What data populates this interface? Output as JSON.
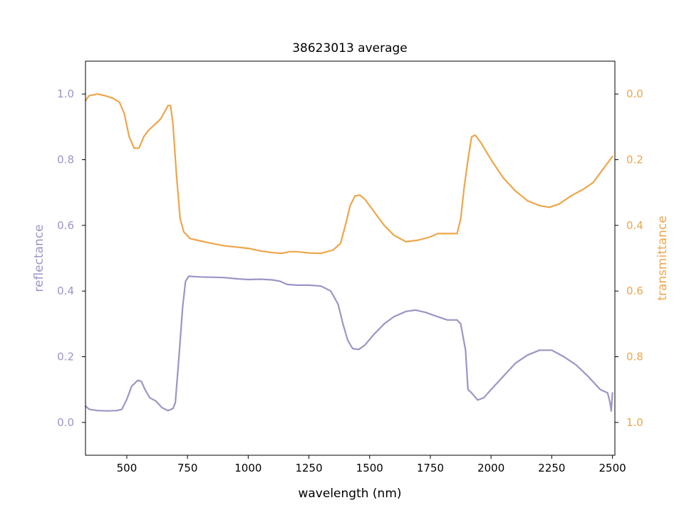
{
  "chart_data": {
    "type": "line",
    "title": "38623013 average",
    "xlabel": "wavelength (nm)",
    "ylabel_left": "reflectance",
    "ylabel_right": "transmittance",
    "xlim": [
      330,
      2510
    ],
    "ylim_left": [
      -0.1,
      1.1
    ],
    "ylim_right": [
      1.1,
      -0.1
    ],
    "right_axis_inverted": true,
    "grid": false,
    "x_ticks": [
      500,
      750,
      1000,
      1250,
      1500,
      1750,
      2000,
      2250,
      2500
    ],
    "x_tick_labels": [
      "500",
      "750",
      "1000",
      "1250",
      "1500",
      "1750",
      "2000",
      "2250",
      "2500"
    ],
    "left_ticks": [
      0.0,
      0.2,
      0.4,
      0.6,
      0.8,
      1.0
    ],
    "left_tick_labels": [
      "0.0",
      "0.2",
      "0.4",
      "0.6",
      "0.8",
      "1.0"
    ],
    "right_ticks": [
      0.0,
      0.2,
      0.4,
      0.6,
      0.8,
      1.0
    ],
    "right_tick_labels": [
      "0.0",
      "0.2",
      "0.4",
      "0.6",
      "0.8",
      "1.0"
    ],
    "colors": {
      "reflectance": "#9a96c6",
      "transmittance": "#eea64b",
      "axes": "#000000"
    },
    "series": [
      {
        "name": "reflectance",
        "axis": "left",
        "points": [
          [
            330,
            0.05
          ],
          [
            345,
            0.04
          ],
          [
            380,
            0.036
          ],
          [
            420,
            0.035
          ],
          [
            460,
            0.036
          ],
          [
            480,
            0.04
          ],
          [
            500,
            0.07
          ],
          [
            520,
            0.11
          ],
          [
            545,
            0.128
          ],
          [
            560,
            0.125
          ],
          [
            575,
            0.1
          ],
          [
            595,
            0.075
          ],
          [
            620,
            0.065
          ],
          [
            645,
            0.045
          ],
          [
            670,
            0.036
          ],
          [
            690,
            0.042
          ],
          [
            700,
            0.06
          ],
          [
            715,
            0.2
          ],
          [
            730,
            0.35
          ],
          [
            742,
            0.43
          ],
          [
            755,
            0.445
          ],
          [
            800,
            0.443
          ],
          [
            900,
            0.441
          ],
          [
            960,
            0.437
          ],
          [
            1000,
            0.435
          ],
          [
            1050,
            0.436
          ],
          [
            1100,
            0.434
          ],
          [
            1130,
            0.43
          ],
          [
            1160,
            0.42
          ],
          [
            1200,
            0.418
          ],
          [
            1250,
            0.418
          ],
          [
            1300,
            0.415
          ],
          [
            1340,
            0.4
          ],
          [
            1370,
            0.36
          ],
          [
            1390,
            0.3
          ],
          [
            1410,
            0.25
          ],
          [
            1430,
            0.225
          ],
          [
            1455,
            0.222
          ],
          [
            1480,
            0.235
          ],
          [
            1520,
            0.27
          ],
          [
            1560,
            0.3
          ],
          [
            1600,
            0.322
          ],
          [
            1650,
            0.338
          ],
          [
            1690,
            0.342
          ],
          [
            1730,
            0.335
          ],
          [
            1780,
            0.322
          ],
          [
            1820,
            0.312
          ],
          [
            1860,
            0.312
          ],
          [
            1875,
            0.3
          ],
          [
            1895,
            0.22
          ],
          [
            1905,
            0.1
          ],
          [
            1920,
            0.09
          ],
          [
            1945,
            0.068
          ],
          [
            1970,
            0.075
          ],
          [
            2000,
            0.1
          ],
          [
            2050,
            0.14
          ],
          [
            2100,
            0.18
          ],
          [
            2150,
            0.205
          ],
          [
            2200,
            0.22
          ],
          [
            2250,
            0.22
          ],
          [
            2300,
            0.2
          ],
          [
            2350,
            0.175
          ],
          [
            2400,
            0.14
          ],
          [
            2450,
            0.1
          ],
          [
            2480,
            0.09
          ],
          [
            2490,
            0.06
          ],
          [
            2495,
            0.035
          ],
          [
            2500,
            0.09
          ]
        ]
      },
      {
        "name": "transmittance",
        "axis": "right",
        "points": [
          [
            330,
            0.02
          ],
          [
            345,
            0.005
          ],
          [
            380,
            0.0
          ],
          [
            410,
            0.005
          ],
          [
            440,
            0.012
          ],
          [
            470,
            0.025
          ],
          [
            490,
            0.06
          ],
          [
            510,
            0.13
          ],
          [
            530,
            0.165
          ],
          [
            550,
            0.165
          ],
          [
            570,
            0.13
          ],
          [
            590,
            0.11
          ],
          [
            620,
            0.09
          ],
          [
            640,
            0.075
          ],
          [
            655,
            0.055
          ],
          [
            670,
            0.035
          ],
          [
            680,
            0.035
          ],
          [
            690,
            0.09
          ],
          [
            705,
            0.25
          ],
          [
            720,
            0.38
          ],
          [
            735,
            0.42
          ],
          [
            760,
            0.44
          ],
          [
            800,
            0.447
          ],
          [
            850,
            0.455
          ],
          [
            900,
            0.462
          ],
          [
            950,
            0.466
          ],
          [
            1000,
            0.47
          ],
          [
            1050,
            0.478
          ],
          [
            1100,
            0.483
          ],
          [
            1140,
            0.485
          ],
          [
            1170,
            0.48
          ],
          [
            1200,
            0.48
          ],
          [
            1250,
            0.484
          ],
          [
            1300,
            0.485
          ],
          [
            1350,
            0.475
          ],
          [
            1380,
            0.455
          ],
          [
            1400,
            0.4
          ],
          [
            1420,
            0.34
          ],
          [
            1440,
            0.31
          ],
          [
            1460,
            0.308
          ],
          [
            1480,
            0.32
          ],
          [
            1520,
            0.36
          ],
          [
            1560,
            0.4
          ],
          [
            1600,
            0.43
          ],
          [
            1650,
            0.45
          ],
          [
            1700,
            0.445
          ],
          [
            1750,
            0.435
          ],
          [
            1780,
            0.425
          ],
          [
            1820,
            0.425
          ],
          [
            1860,
            0.425
          ],
          [
            1875,
            0.38
          ],
          [
            1890,
            0.28
          ],
          [
            1905,
            0.2
          ],
          [
            1920,
            0.13
          ],
          [
            1935,
            0.125
          ],
          [
            1960,
            0.15
          ],
          [
            2000,
            0.2
          ],
          [
            2050,
            0.255
          ],
          [
            2100,
            0.295
          ],
          [
            2150,
            0.325
          ],
          [
            2200,
            0.34
          ],
          [
            2240,
            0.345
          ],
          [
            2280,
            0.335
          ],
          [
            2330,
            0.31
          ],
          [
            2380,
            0.29
          ],
          [
            2420,
            0.27
          ],
          [
            2460,
            0.23
          ],
          [
            2480,
            0.21
          ],
          [
            2500,
            0.19
          ]
        ]
      }
    ]
  }
}
